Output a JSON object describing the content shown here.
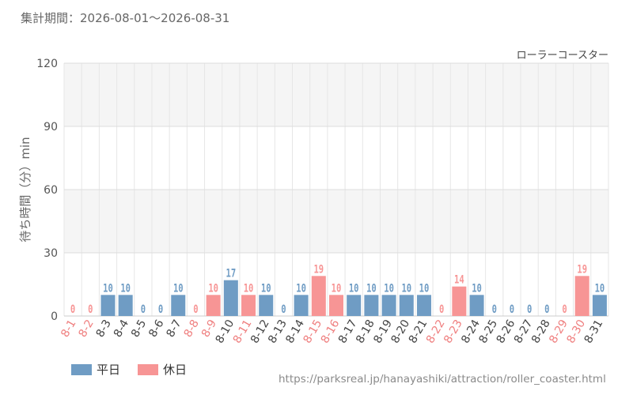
{
  "header": {
    "period": "集計期間：2026-08-01～2026-08-31"
  },
  "legend": {
    "weekday_label": "平日",
    "holiday_label": "休日"
  },
  "footer": {
    "source": "https://parksreal.jp/hanayashiki/attraction/roller_coaster.html"
  },
  "colors": {
    "weekday": "#6f9cc4",
    "holiday": "#f79595",
    "band": "#f5f5f5",
    "grid": "#dddddd",
    "axis_text": "#555555"
  },
  "chart_data": {
    "type": "bar",
    "title": "ローラーコースター",
    "xlabel": "",
    "ylabel": "待ち時間（分）min",
    "ylim": [
      0,
      120
    ],
    "yticks": [
      0,
      30,
      60,
      90,
      120
    ],
    "grid": true,
    "legend_position": "bottom-left",
    "categories": [
      "8-1",
      "8-2",
      "8-3",
      "8-4",
      "8-5",
      "8-6",
      "8-7",
      "8-8",
      "8-9",
      "8-10",
      "8-11",
      "8-12",
      "8-13",
      "8-14",
      "8-15",
      "8-16",
      "8-17",
      "8-18",
      "8-19",
      "8-20",
      "8-21",
      "8-22",
      "8-23",
      "8-24",
      "8-25",
      "8-26",
      "8-27",
      "8-28",
      "8-29",
      "8-30",
      "8-31"
    ],
    "values": [
      0,
      0,
      10,
      10,
      0,
      0,
      10,
      0,
      10,
      17,
      10,
      10,
      0,
      10,
      19,
      10,
      10,
      10,
      10,
      10,
      10,
      0,
      14,
      10,
      0,
      0,
      0,
      0,
      0,
      19,
      10
    ],
    "day_type": [
      "holiday",
      "holiday",
      "weekday",
      "weekday",
      "weekday",
      "weekday",
      "weekday",
      "holiday",
      "holiday",
      "weekday",
      "holiday",
      "weekday",
      "weekday",
      "weekday",
      "holiday",
      "holiday",
      "weekday",
      "weekday",
      "weekday",
      "weekday",
      "weekday",
      "holiday",
      "holiday",
      "weekday",
      "weekday",
      "weekday",
      "weekday",
      "weekday",
      "holiday",
      "holiday",
      "weekday"
    ]
  }
}
